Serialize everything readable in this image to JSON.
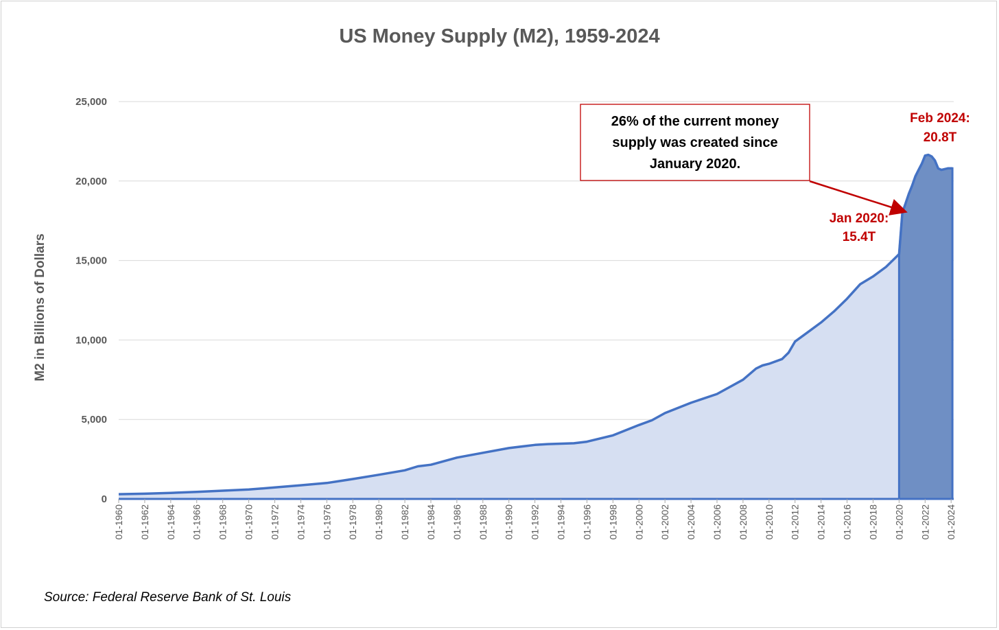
{
  "chart_data": {
    "type": "area",
    "title": "US Money Supply (M2), 1959-2024",
    "ylabel": "M2 in Billions of Dollars",
    "xlabel": "",
    "xlim": [
      1960,
      2024.2
    ],
    "ylim": [
      0,
      25000
    ],
    "y_ticks": [
      0,
      5000,
      10000,
      15000,
      20000,
      25000
    ],
    "y_tick_labels": [
      "0",
      "5,000",
      "10,000",
      "15,000",
      "20,000",
      "25,000"
    ],
    "x_tick_labels": [
      "01-1960",
      "01-1962",
      "01-1964",
      "01-1966",
      "01-1968",
      "01-1970",
      "01-1972",
      "01-1974",
      "01-1976",
      "01-1978",
      "01-1980",
      "01-1982",
      "01-1984",
      "01-1986",
      "01-1988",
      "01-1990",
      "01-1992",
      "01-1994",
      "01-1996",
      "01-1998",
      "01-2000",
      "01-2002",
      "01-2004",
      "01-2006",
      "01-2008",
      "01-2010",
      "01-2012",
      "01-2014",
      "01-2016",
      "01-2018",
      "01-2020",
      "01-2022",
      "01-2024"
    ],
    "grid": "horizontal",
    "highlight_start": 2020.0,
    "colors": {
      "area": "#d6dff2",
      "line": "#4472c4",
      "highlight": "#6f8fc4",
      "annotation": "#c00000",
      "grid": "#d9d9d9"
    },
    "series": [
      {
        "x": [
          1960,
          1962,
          1964,
          1966,
          1968,
          1970,
          1972,
          1974,
          1976,
          1978,
          1980,
          1982,
          1983,
          1984,
          1986,
          1988,
          1990,
          1992,
          1993,
          1995,
          1996,
          1998,
          2000,
          2001,
          2002,
          2004,
          2006,
          2008,
          2009,
          2009.5,
          2010,
          2011,
          2011.5,
          2012,
          2013,
          2014,
          2015,
          2016,
          2017,
          2018,
          2019,
          2019.5,
          2020,
          2020.25,
          2020.5,
          2020.75,
          2021,
          2021.25,
          2021.5,
          2021.75,
          2022,
          2022.25,
          2022.5,
          2022.75,
          2023,
          2023.25,
          2023.5,
          2023.75,
          2024,
          2024.1
        ],
        "y": [
          300,
          330,
          380,
          440,
          520,
          590,
          720,
          860,
          1000,
          1250,
          1520,
          1800,
          2050,
          2150,
          2600,
          2900,
          3200,
          3400,
          3450,
          3500,
          3600,
          4000,
          4650,
          4950,
          5400,
          6050,
          6600,
          7500,
          8200,
          8400,
          8500,
          8800,
          9200,
          9900,
          10500,
          11100,
          11800,
          12600,
          13500,
          14000,
          14600,
          15000,
          15400,
          18000,
          18600,
          19200,
          19700,
          20300,
          20700,
          21100,
          21600,
          21650,
          21550,
          21300,
          20800,
          20700,
          20750,
          20800,
          20800,
          20800
        ]
      }
    ],
    "annotations": {
      "callout": [
        "26% of the current money",
        "supply was created since",
        "January 2020."
      ],
      "jan2020": [
        "Jan 2020:",
        "15.4T"
      ],
      "feb2024": [
        "Feb 2024:",
        "20.8T"
      ]
    },
    "source": "Source: Federal Reserve Bank of St. Louis"
  }
}
